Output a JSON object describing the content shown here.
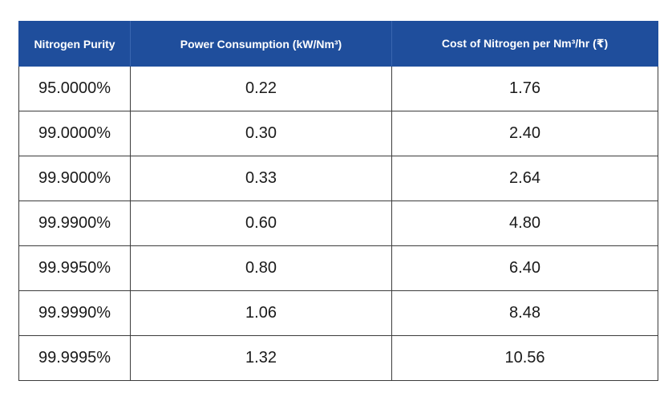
{
  "table": {
    "headers": [
      "Nitrogen Purity",
      "Power Consumption (kW/Nm³)",
      "Cost of Nitrogen per Nm³/hr (₹)"
    ],
    "rows": [
      [
        "95.0000%",
        "0.22",
        "1.76"
      ],
      [
        "99.0000%",
        "0.30",
        "2.40"
      ],
      [
        "99.9000%",
        "0.33",
        "2.64"
      ],
      [
        "99.9900%",
        "0.60",
        "4.80"
      ],
      [
        "99.9950%",
        "0.80",
        "6.40"
      ],
      [
        "99.9990%",
        "1.06",
        "8.48"
      ],
      [
        "99.9995%",
        "1.32",
        "10.56"
      ]
    ],
    "header_bg": "#1f4e9c",
    "header_text_color": "#ffffff",
    "border_color": "#3c3c3c"
  }
}
